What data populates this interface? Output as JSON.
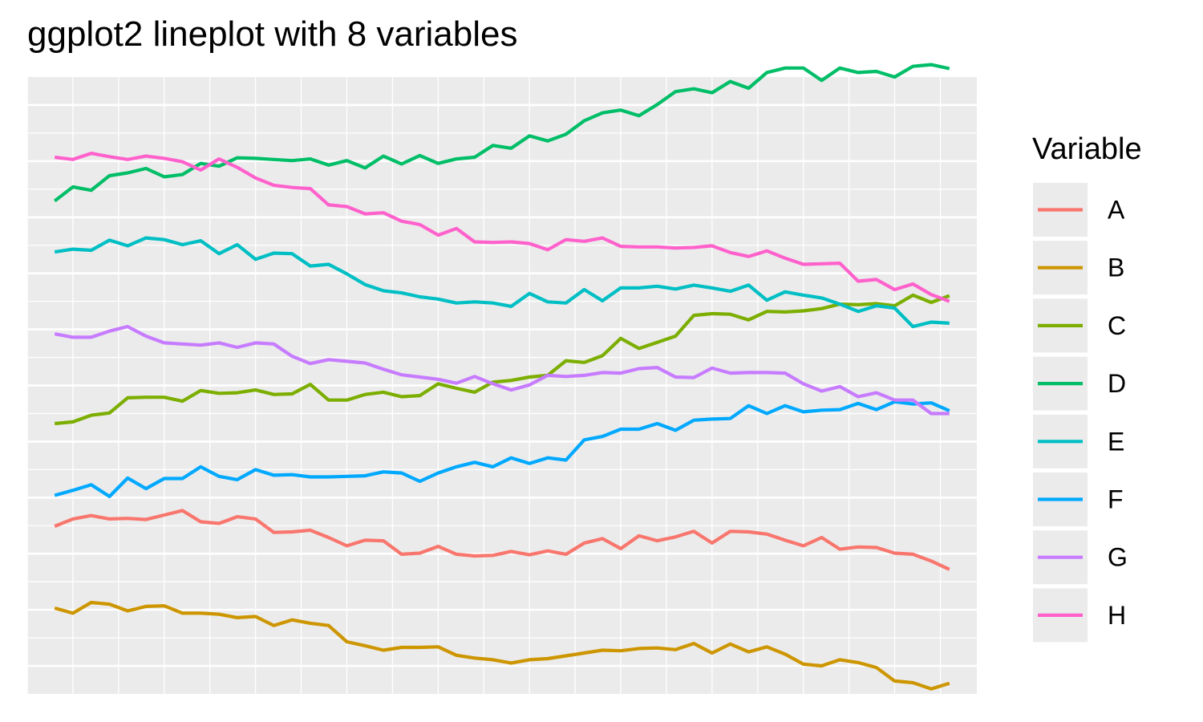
{
  "chart_data": {
    "type": "line",
    "title": "ggplot2 lineplot with 8 variables",
    "xlabel": "",
    "ylabel": "",
    "x_ticks_shown": false,
    "y_ticks_shown": false,
    "grid": true,
    "legend": {
      "title": "Variable",
      "position": "right"
    },
    "x": [
      1,
      2,
      3,
      4,
      5,
      6,
      7,
      8,
      9,
      10,
      11,
      12,
      13,
      14,
      15,
      16,
      17,
      18,
      19,
      20,
      21,
      22,
      23,
      24,
      25,
      26,
      27,
      28,
      29,
      30,
      31,
      32,
      33,
      34,
      35,
      36,
      37,
      38,
      39,
      40,
      41,
      42,
      43,
      44,
      45,
      46,
      47,
      48,
      49,
      50
    ],
    "xlim": [
      -0.5,
      51.5
    ],
    "ylim": [
      0.5,
      11.5
    ],
    "series": [
      {
        "name": "A",
        "color": "#F8766D",
        "values": [
          3.49,
          3.62,
          3.68,
          3.62,
          3.63,
          3.61,
          3.69,
          3.77,
          3.57,
          3.54,
          3.66,
          3.62,
          3.38,
          3.39,
          3.42,
          3.29,
          3.14,
          3.24,
          3.23,
          2.99,
          3.01,
          3.13,
          2.99,
          2.96,
          2.97,
          3.04,
          2.98,
          3.05,
          2.99,
          3.19,
          3.27,
          3.09,
          3.32,
          3.23,
          3.3,
          3.4,
          3.19,
          3.4,
          3.39,
          3.35,
          3.24,
          3.14,
          3.29,
          3.08,
          3.12,
          3.11,
          3.01,
          2.99,
          2.87,
          2.72
        ]
      },
      {
        "name": "B",
        "color": "#CD9600",
        "values": [
          2.03,
          1.94,
          2.13,
          2.1,
          1.98,
          2.06,
          2.07,
          1.94,
          1.94,
          1.92,
          1.86,
          1.88,
          1.72,
          1.82,
          1.76,
          1.72,
          1.43,
          1.36,
          1.28,
          1.33,
          1.33,
          1.34,
          1.19,
          1.14,
          1.11,
          1.05,
          1.11,
          1.13,
          1.18,
          1.23,
          1.28,
          1.27,
          1.31,
          1.32,
          1.29,
          1.4,
          1.23,
          1.39,
          1.25,
          1.34,
          1.21,
          1.03,
          1.0,
          1.11,
          1.06,
          0.97,
          0.73,
          0.7,
          0.59,
          0.69
        ]
      },
      {
        "name": "C",
        "color": "#7CAE00",
        "values": [
          5.32,
          5.35,
          5.47,
          5.51,
          5.78,
          5.79,
          5.79,
          5.72,
          5.91,
          5.86,
          5.87,
          5.92,
          5.84,
          5.85,
          6.02,
          5.74,
          5.74,
          5.84,
          5.88,
          5.8,
          5.82,
          6.03,
          5.95,
          5.88,
          6.06,
          6.09,
          6.15,
          6.18,
          6.44,
          6.41,
          6.53,
          6.84,
          6.66,
          6.77,
          6.88,
          7.25,
          7.28,
          7.27,
          7.17,
          7.32,
          7.31,
          7.33,
          7.37,
          7.45,
          7.44,
          7.46,
          7.42,
          7.61,
          7.48,
          7.6
        ]
      },
      {
        "name": "D",
        "color": "#00BE67",
        "values": [
          9.29,
          9.54,
          9.48,
          9.74,
          9.79,
          9.87,
          9.72,
          9.76,
          9.96,
          9.91,
          10.06,
          10.05,
          10.03,
          10.01,
          10.04,
          9.93,
          10.01,
          9.88,
          10.09,
          9.95,
          10.1,
          9.96,
          10.04,
          10.07,
          10.28,
          10.23,
          10.45,
          10.36,
          10.48,
          10.72,
          10.86,
          10.91,
          10.81,
          11.01,
          11.24,
          11.29,
          11.22,
          11.42,
          11.3,
          11.58,
          11.66,
          11.66,
          11.44,
          11.66,
          11.58,
          11.6,
          11.5,
          11.69,
          11.72,
          11.65
        ]
      },
      {
        "name": "E",
        "color": "#00BFC4",
        "values": [
          8.38,
          8.43,
          8.41,
          8.59,
          8.49,
          8.63,
          8.6,
          8.51,
          8.58,
          8.35,
          8.51,
          8.25,
          8.36,
          8.35,
          8.13,
          8.16,
          7.99,
          7.8,
          7.69,
          7.65,
          7.58,
          7.54,
          7.47,
          7.49,
          7.47,
          7.41,
          7.64,
          7.49,
          7.47,
          7.71,
          7.51,
          7.74,
          7.74,
          7.77,
          7.72,
          7.79,
          7.74,
          7.68,
          7.79,
          7.52,
          7.67,
          7.61,
          7.56,
          7.45,
          7.32,
          7.42,
          7.38,
          7.05,
          7.13,
          7.11
        ]
      },
      {
        "name": "F",
        "color": "#00A9FF",
        "values": [
          4.04,
          4.13,
          4.23,
          4.02,
          4.35,
          4.16,
          4.34,
          4.34,
          4.55,
          4.38,
          4.32,
          4.5,
          4.4,
          4.41,
          4.37,
          4.37,
          4.38,
          4.39,
          4.46,
          4.44,
          4.29,
          4.44,
          4.55,
          4.63,
          4.55,
          4.71,
          4.61,
          4.71,
          4.67,
          5.03,
          5.09,
          5.22,
          5.22,
          5.32,
          5.2,
          5.38,
          5.4,
          5.41,
          5.64,
          5.5,
          5.64,
          5.53,
          5.56,
          5.57,
          5.68,
          5.57,
          5.71,
          5.67,
          5.69,
          5.55
        ]
      },
      {
        "name": "G",
        "color": "#C77CFF",
        "values": [
          6.92,
          6.86,
          6.86,
          6.97,
          7.05,
          6.88,
          6.76,
          6.74,
          6.72,
          6.76,
          6.68,
          6.76,
          6.74,
          6.52,
          6.39,
          6.46,
          6.43,
          6.4,
          6.29,
          6.19,
          6.15,
          6.11,
          6.04,
          6.16,
          6.03,
          5.92,
          6.01,
          6.18,
          6.16,
          6.18,
          6.23,
          6.22,
          6.3,
          6.32,
          6.15,
          6.14,
          6.31,
          6.22,
          6.23,
          6.23,
          6.22,
          6.03,
          5.9,
          5.98,
          5.8,
          5.87,
          5.74,
          5.74,
          5.5,
          5.5
        ]
      },
      {
        "name": "H",
        "color": "#FF61CC",
        "values": [
          10.07,
          10.03,
          10.14,
          10.08,
          10.03,
          10.09,
          10.05,
          9.99,
          9.84,
          10.04,
          9.89,
          9.7,
          9.57,
          9.53,
          9.51,
          9.22,
          9.19,
          9.06,
          9.08,
          8.93,
          8.87,
          8.68,
          8.8,
          8.56,
          8.55,
          8.56,
          8.53,
          8.42,
          8.6,
          8.57,
          8.63,
          8.48,
          8.47,
          8.47,
          8.45,
          8.46,
          8.49,
          8.37,
          8.3,
          8.4,
          8.27,
          8.16,
          8.17,
          8.18,
          7.86,
          7.89,
          7.71,
          7.81,
          7.62,
          7.5
        ]
      }
    ]
  }
}
